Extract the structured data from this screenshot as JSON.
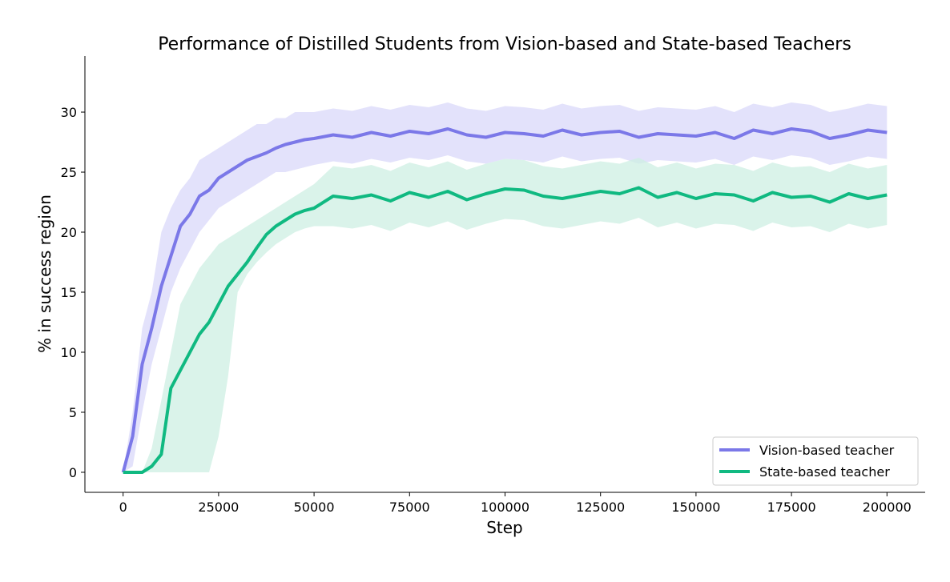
{
  "chart_data": {
    "type": "line",
    "title": "Performance of Distilled Students from Vision-based and State-based Teachers",
    "xlabel": "Step",
    "ylabel": "% in success region",
    "xlim": [
      -10000,
      210000
    ],
    "ylim": [
      -1.67,
      34.67
    ],
    "xticks": [
      0,
      25000,
      50000,
      75000,
      100000,
      125000,
      150000,
      175000,
      200000
    ],
    "yticks": [
      0,
      5,
      10,
      15,
      20,
      25,
      30
    ],
    "grid": false,
    "legend_position": "bottom-right",
    "x": [
      0,
      2500,
      5000,
      7500,
      10000,
      12500,
      15000,
      17500,
      20000,
      22500,
      25000,
      27500,
      30000,
      32500,
      35000,
      37500,
      40000,
      42500,
      45000,
      47500,
      50000,
      55000,
      60000,
      65000,
      70000,
      75000,
      80000,
      85000,
      90000,
      95000,
      100000,
      105000,
      110000,
      115000,
      120000,
      125000,
      130000,
      135000,
      140000,
      145000,
      150000,
      155000,
      160000,
      165000,
      170000,
      175000,
      180000,
      185000,
      190000,
      195000,
      200000
    ],
    "series": [
      {
        "name": "Vision-based teacher",
        "color": "#7B78E8",
        "band_color": "#D9D8FA",
        "values": [
          0,
          3,
          9,
          12,
          15.5,
          18,
          20.5,
          21.5,
          23,
          23.5,
          24.5,
          25,
          25.5,
          26,
          26.3,
          26.6,
          27,
          27.3,
          27.5,
          27.7,
          27.8,
          28.1,
          27.9,
          28.3,
          28.0,
          28.4,
          28.2,
          28.6,
          28.1,
          27.9,
          28.3,
          28.2,
          28.0,
          28.5,
          28.1,
          28.3,
          28.4,
          27.9,
          28.2,
          28.1,
          28.0,
          28.3,
          27.8,
          28.5,
          28.2,
          28.6,
          28.4,
          27.8,
          28.1,
          28.5,
          28.3
        ],
        "upper": [
          0,
          5,
          12,
          15,
          20,
          22,
          23.5,
          24.5,
          26,
          26.5,
          27,
          27.5,
          28,
          28.5,
          29,
          29,
          29.5,
          29.5,
          30,
          30,
          30,
          30.3,
          30.1,
          30.5,
          30.2,
          30.6,
          30.4,
          30.8,
          30.3,
          30.1,
          30.5,
          30.4,
          30.2,
          30.7,
          30.3,
          30.5,
          30.6,
          30.1,
          30.4,
          30.3,
          30.2,
          30.5,
          30,
          30.7,
          30.4,
          30.8,
          30.6,
          30,
          30.3,
          30.7,
          30.5
        ],
        "lower": [
          0,
          0.5,
          5,
          9,
          12,
          15,
          17,
          18.5,
          20,
          21,
          22,
          22.5,
          23,
          23.5,
          24,
          24.5,
          25,
          25,
          25.2,
          25.4,
          25.6,
          25.9,
          25.7,
          26.1,
          25.8,
          26.2,
          26,
          26.4,
          25.9,
          25.7,
          26.1,
          26,
          25.8,
          26.3,
          25.9,
          26.1,
          26.2,
          25.7,
          26,
          25.9,
          25.8,
          26.1,
          25.6,
          26.3,
          26,
          26.4,
          26.2,
          25.6,
          25.9,
          26.3,
          26.1
        ]
      },
      {
        "name": "State-based teacher",
        "color": "#10B981",
        "band_color": "#CDEFE3",
        "values": [
          0,
          0,
          0,
          0.5,
          1.5,
          7,
          8.5,
          10,
          11.5,
          12.5,
          14,
          15.5,
          16.5,
          17.5,
          18.7,
          19.8,
          20.5,
          21,
          21.5,
          21.8,
          22,
          23,
          22.8,
          23.1,
          22.6,
          23.3,
          22.9,
          23.4,
          22.7,
          23.2,
          23.6,
          23.5,
          23,
          22.8,
          23.1,
          23.4,
          23.2,
          23.7,
          22.9,
          23.3,
          22.8,
          23.2,
          23.1,
          22.6,
          23.3,
          22.9,
          23,
          22.5,
          23.2,
          22.8,
          23.1
        ],
        "upper": [
          0,
          0,
          0,
          2,
          6,
          10,
          14,
          15.5,
          17,
          18,
          19,
          19.5,
          20,
          20.5,
          21,
          21.5,
          22,
          22.5,
          23,
          23.5,
          24,
          25.5,
          25.3,
          25.6,
          25.1,
          25.8,
          25.4,
          25.9,
          25.2,
          25.7,
          26.1,
          26,
          25.5,
          25.3,
          25.6,
          25.9,
          25.7,
          26.2,
          25.4,
          25.8,
          25.3,
          25.7,
          25.6,
          25.1,
          25.8,
          25.4,
          25.5,
          25,
          25.7,
          25.3,
          25.6
        ],
        "lower": [
          0,
          0,
          0,
          0,
          0,
          0,
          0,
          0,
          0,
          0,
          3,
          8,
          15,
          16.5,
          17.5,
          18.3,
          19,
          19.5,
          20,
          20.3,
          20.5,
          20.5,
          20.3,
          20.6,
          20.1,
          20.8,
          20.4,
          20.9,
          20.2,
          20.7,
          21.1,
          21,
          20.5,
          20.3,
          20.6,
          20.9,
          20.7,
          21.2,
          20.4,
          20.8,
          20.3,
          20.7,
          20.6,
          20.1,
          20.8,
          20.4,
          20.5,
          20,
          20.7,
          20.3,
          20.6
        ]
      }
    ]
  }
}
